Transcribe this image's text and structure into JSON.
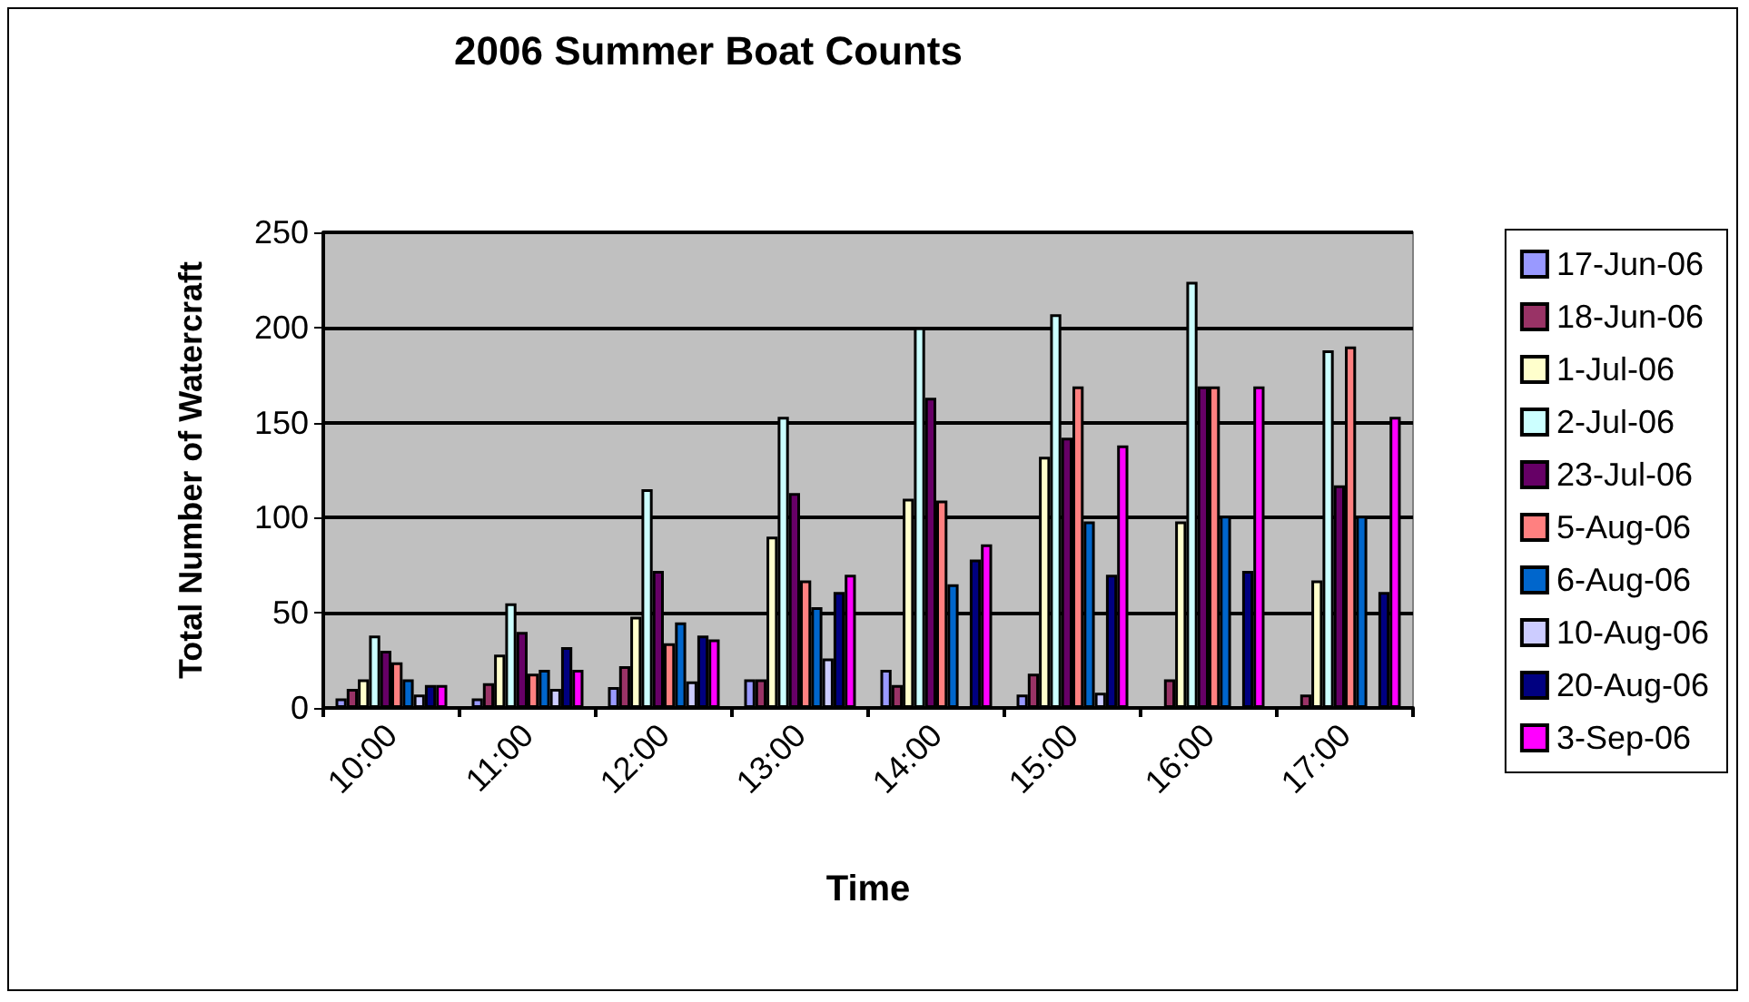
{
  "chart_data": {
    "type": "bar",
    "title": "2006 Summer Boat Counts",
    "xlabel": "Time",
    "ylabel": "Total Number of Watercraft",
    "categories": [
      "10:00",
      "11:00",
      "12:00",
      "13:00",
      "14:00",
      "15:00",
      "16:00",
      "17:00"
    ],
    "series": [
      {
        "name": "17-Jun-06",
        "color": "#9999ff",
        "values": [
          5,
          5,
          11,
          15,
          20,
          7,
          null,
          null
        ]
      },
      {
        "name": "18-Jun-06",
        "color": "#993366",
        "values": [
          10,
          13,
          22,
          15,
          12,
          18,
          15,
          7
        ]
      },
      {
        "name": "1-Jul-06",
        "color": "#ffffcc",
        "values": [
          15,
          28,
          48,
          90,
          110,
          132,
          98,
          67
        ]
      },
      {
        "name": "2-Jul-06",
        "color": "#ccffff",
        "values": [
          38,
          55,
          115,
          153,
          200,
          207,
          224,
          188
        ]
      },
      {
        "name": "23-Jul-06",
        "color": "#660066",
        "values": [
          30,
          40,
          72,
          113,
          163,
          142,
          169,
          117
        ]
      },
      {
        "name": "5-Aug-06",
        "color": "#ff8080",
        "values": [
          24,
          18,
          34,
          67,
          109,
          169,
          169,
          190
        ]
      },
      {
        "name": "6-Aug-06",
        "color": "#0066cc",
        "values": [
          15,
          20,
          45,
          53,
          65,
          98,
          101,
          101
        ]
      },
      {
        "name": "10-Aug-06",
        "color": "#ccccff",
        "values": [
          7,
          10,
          14,
          26,
          null,
          8,
          null,
          null
        ]
      },
      {
        "name": "20-Aug-06",
        "color": "#000080",
        "values": [
          12,
          32,
          38,
          61,
          78,
          70,
          72,
          61
        ]
      },
      {
        "name": "3-Sep-06",
        "color": "#ff00ff",
        "values": [
          12,
          20,
          36,
          70,
          86,
          138,
          169,
          153
        ]
      }
    ],
    "ylim": [
      0,
      250
    ],
    "yticks": [
      0,
      50,
      100,
      150,
      200,
      250
    ],
    "grid": "y",
    "legend": "right"
  }
}
